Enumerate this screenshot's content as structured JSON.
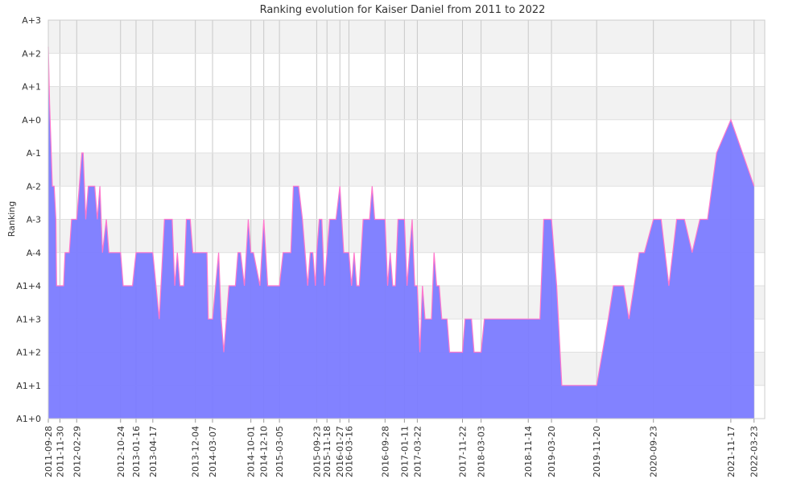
{
  "chart_data": {
    "type": "area",
    "title": "Ranking evolution for Kaiser Daniel from 2011 to 2022",
    "ylabel": "Ranking",
    "xlabel": "",
    "y_tick_labels": [
      "A1+0",
      "A1+1",
      "A1+2",
      "A1+3",
      "A1+4",
      "A-4",
      "A-3",
      "A-2",
      "A-1",
      "A+0",
      "A+1",
      "A+2",
      "A+3"
    ],
    "ylim": [
      0,
      12
    ],
    "xlim": [
      "2011-09-28",
      "2022-05-20"
    ],
    "x_ticks": [
      "2011-09-28",
      "2011-11-30",
      "2012-02-29",
      "2012-10-24",
      "2013-01-16",
      "2013-04-17",
      "2013-12-04",
      "2014-03-07",
      "2014-10-01",
      "2014-12-10",
      "2015-03-05",
      "2015-09-23",
      "2015-11-18",
      "2016-01-27",
      "2016-03-16",
      "2016-09-28",
      "2017-01-11",
      "2017-03-22",
      "2017-11-22",
      "2018-03-03",
      "2018-11-14",
      "2019-03-20",
      "2019-11-20",
      "2020-09-23",
      "2021-11-17",
      "2022-03-23"
    ],
    "grid": true,
    "colors": {
      "fill": "#7b7bff",
      "line": "#ff77cc",
      "grid_band": "#f2f2f2",
      "grid_line": "#c8c8c8"
    },
    "series": [
      {
        "points": [
          [
            "2011-09-28",
            11.2
          ],
          [
            "2011-10-05",
            9.5
          ],
          [
            "2011-10-20",
            7.0
          ],
          [
            "2011-10-30",
            7.0
          ],
          [
            "2011-11-08",
            6.0
          ],
          [
            "2011-11-12",
            4.0
          ],
          [
            "2011-12-20",
            4.0
          ],
          [
            "2011-12-28",
            5.0
          ],
          [
            "2012-01-20",
            5.0
          ],
          [
            "2012-02-01",
            6.0
          ],
          [
            "2012-02-29",
            6.0
          ],
          [
            "2012-03-28",
            8.0
          ],
          [
            "2012-04-04",
            8.0
          ],
          [
            "2012-04-18",
            6.0
          ],
          [
            "2012-05-02",
            7.0
          ],
          [
            "2012-06-06",
            7.0
          ],
          [
            "2012-06-20",
            6.0
          ],
          [
            "2012-07-04",
            7.0
          ],
          [
            "2012-07-18",
            5.0
          ],
          [
            "2012-08-08",
            6.0
          ],
          [
            "2012-08-22",
            5.0
          ],
          [
            "2012-10-24",
            5.0
          ],
          [
            "2012-11-07",
            4.0
          ],
          [
            "2012-12-28",
            4.0
          ],
          [
            "2013-01-16",
            5.0
          ],
          [
            "2013-04-17",
            5.0
          ],
          [
            "2013-05-22",
            3.0
          ],
          [
            "2013-06-19",
            6.0
          ],
          [
            "2013-07-31",
            6.0
          ],
          [
            "2013-08-14",
            4.0
          ],
          [
            "2013-08-28",
            5.0
          ],
          [
            "2013-09-11",
            4.0
          ],
          [
            "2013-10-02",
            4.0
          ],
          [
            "2013-10-16",
            6.0
          ],
          [
            "2013-11-06",
            6.0
          ],
          [
            "2013-11-20",
            5.0
          ],
          [
            "2014-02-05",
            5.0
          ],
          [
            "2014-02-12",
            3.0
          ],
          [
            "2014-03-07",
            3.0
          ],
          [
            "2014-04-09",
            5.0
          ],
          [
            "2014-04-23",
            3.0
          ],
          [
            "2014-05-07",
            2.0
          ],
          [
            "2014-06-04",
            4.0
          ],
          [
            "2014-07-09",
            4.0
          ],
          [
            "2014-07-23",
            5.0
          ],
          [
            "2014-08-06",
            5.0
          ],
          [
            "2014-08-27",
            4.0
          ],
          [
            "2014-09-17",
            6.0
          ],
          [
            "2014-10-01",
            5.0
          ],
          [
            "2014-10-15",
            5.0
          ],
          [
            "2014-11-19",
            4.0
          ],
          [
            "2014-12-10",
            6.0
          ],
          [
            "2014-12-31",
            4.0
          ],
          [
            "2015-03-05",
            4.0
          ],
          [
            "2015-03-25",
            5.0
          ],
          [
            "2015-05-06",
            5.0
          ],
          [
            "2015-05-20",
            7.0
          ],
          [
            "2015-06-17",
            7.0
          ],
          [
            "2015-07-08",
            6.0
          ],
          [
            "2015-07-22",
            5.0
          ],
          [
            "2015-08-05",
            4.0
          ],
          [
            "2015-08-19",
            5.0
          ],
          [
            "2015-09-02",
            5.0
          ],
          [
            "2015-09-16",
            4.0
          ],
          [
            "2015-09-23",
            5.0
          ],
          [
            "2015-10-07",
            6.0
          ],
          [
            "2015-10-21",
            6.0
          ],
          [
            "2015-11-04",
            4.0
          ],
          [
            "2015-11-18",
            5.0
          ],
          [
            "2015-12-02",
            6.0
          ],
          [
            "2016-01-06",
            6.0
          ],
          [
            "2016-01-27",
            7.0
          ],
          [
            "2016-02-17",
            5.0
          ],
          [
            "2016-03-16",
            5.0
          ],
          [
            "2016-03-30",
            4.0
          ],
          [
            "2016-04-13",
            5.0
          ],
          [
            "2016-04-27",
            4.0
          ],
          [
            "2016-05-11",
            4.0
          ],
          [
            "2016-06-01",
            6.0
          ],
          [
            "2016-07-06",
            6.0
          ],
          [
            "2016-07-20",
            7.0
          ],
          [
            "2016-08-03",
            6.0
          ],
          [
            "2016-09-28",
            6.0
          ],
          [
            "2016-10-12",
            4.0
          ],
          [
            "2016-10-26",
            5.0
          ],
          [
            "2016-11-09",
            4.0
          ],
          [
            "2016-11-23",
            4.0
          ],
          [
            "2016-12-07",
            6.0
          ],
          [
            "2017-01-11",
            6.0
          ],
          [
            "2017-01-25",
            4.0
          ],
          [
            "2017-02-08",
            5.0
          ],
          [
            "2017-02-22",
            6.0
          ],
          [
            "2017-03-08",
            4.0
          ],
          [
            "2017-03-22",
            4.0
          ],
          [
            "2017-04-05",
            2.0
          ],
          [
            "2017-04-19",
            4.0
          ],
          [
            "2017-05-03",
            3.0
          ],
          [
            "2017-05-17",
            3.0
          ],
          [
            "2017-06-07",
            3.0
          ],
          [
            "2017-06-21",
            5.0
          ],
          [
            "2017-07-05",
            4.0
          ],
          [
            "2017-07-19",
            4.0
          ],
          [
            "2017-08-02",
            3.0
          ],
          [
            "2017-08-30",
            3.0
          ],
          [
            "2017-09-13",
            2.0
          ],
          [
            "2017-11-22",
            2.0
          ],
          [
            "2017-12-06",
            3.0
          ],
          [
            "2018-01-10",
            3.0
          ],
          [
            "2018-01-24",
            2.0
          ],
          [
            "2018-03-03",
            2.0
          ],
          [
            "2018-03-21",
            3.0
          ],
          [
            "2018-11-14",
            3.0
          ],
          [
            "2019-01-16",
            3.0
          ],
          [
            "2019-02-06",
            6.0
          ],
          [
            "2019-03-20",
            6.0
          ],
          [
            "2019-04-17",
            4.0
          ],
          [
            "2019-05-15",
            1.0
          ],
          [
            "2019-11-20",
            1.0
          ],
          [
            "2020-01-22",
            3.0
          ],
          [
            "2020-02-19",
            4.0
          ],
          [
            "2020-04-15",
            4.0
          ],
          [
            "2020-05-13",
            3.0
          ],
          [
            "2020-06-10",
            4.0
          ],
          [
            "2020-07-08",
            5.0
          ],
          [
            "2020-08-05",
            5.0
          ],
          [
            "2020-09-23",
            6.0
          ],
          [
            "2020-11-04",
            6.0
          ],
          [
            "2020-12-16",
            4.0
          ],
          [
            "2021-01-27",
            6.0
          ],
          [
            "2021-03-10",
            6.0
          ],
          [
            "2021-04-21",
            5.0
          ],
          [
            "2021-06-02",
            6.0
          ],
          [
            "2021-07-14",
            6.0
          ],
          [
            "2021-09-01",
            8.0
          ],
          [
            "2021-11-17",
            9.0
          ],
          [
            "2022-01-19",
            8.0
          ],
          [
            "2022-03-23",
            7.0
          ]
        ]
      }
    ]
  }
}
